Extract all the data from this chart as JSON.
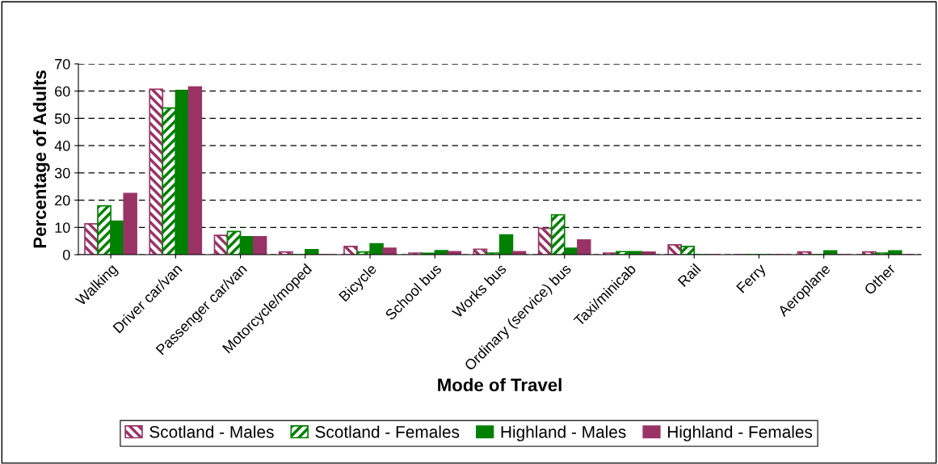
{
  "chart_data": {
    "type": "bar",
    "xlabel": "Mode of Travel",
    "ylabel": "Percentage of Adults",
    "categories": [
      "Walking",
      "Driver car/van",
      "Passenger car/van",
      "Motorcycle/moped",
      "Bicycle",
      "School bus",
      "Works bus",
      "Ordinary (service) bus",
      "Taxi/minicab",
      "Rail",
      "Ferry",
      "Aeroplane",
      "Other"
    ],
    "series": [
      {
        "name": "Scotland - Males",
        "color": "#993366",
        "values": [
          11.3,
          60.7,
          7.1,
          1.0,
          3.0,
          0.6,
          2.0,
          9.7,
          0.6,
          3.6,
          0,
          1.0,
          1.0
        ]
      },
      {
        "name": "Scotland - Females",
        "color": "#008000",
        "values": [
          17.9,
          53.8,
          8.5,
          0,
          1.0,
          0.5,
          0.6,
          14.6,
          1.1,
          3.0,
          0,
          0,
          0.6
        ]
      },
      {
        "name": "Highland - Males",
        "color": "#008000",
        "values": [
          12.3,
          60.3,
          6.6,
          1.9,
          4.0,
          1.5,
          7.3,
          2.4,
          1.1,
          0,
          0,
          1.4,
          1.4
        ]
      },
      {
        "name": "Highland - Females",
        "color": "#993366",
        "values": [
          22.5,
          61.6,
          6.6,
          0,
          2.4,
          1.1,
          1.1,
          5.4,
          1.0,
          0,
          0,
          0,
          0
        ]
      }
    ],
    "ylim": [
      0,
      70
    ],
    "yticks": [
      0,
      10,
      20,
      30,
      40,
      50,
      60,
      70
    ],
    "grid": "y",
    "legend": "bottom"
  }
}
